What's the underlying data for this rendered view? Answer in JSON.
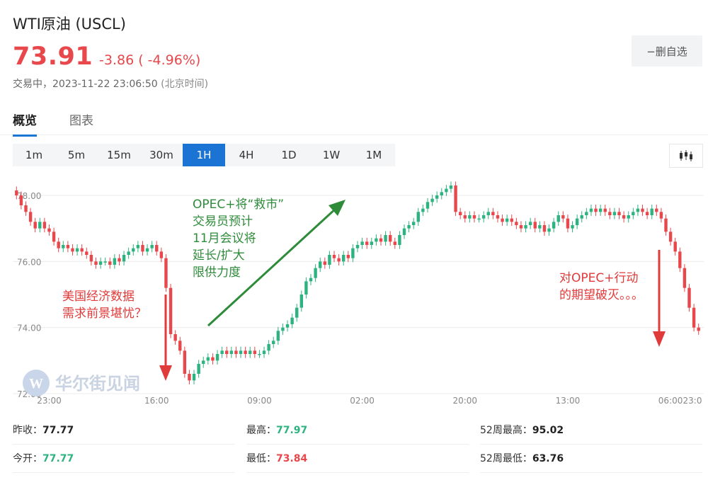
{
  "header": {
    "title": "WTI原油 (USCL)",
    "price": "73.91",
    "change": "-3.86 ( -4.96%)",
    "status_label": "交易中，",
    "timestamp": "2023-11-22 23:06:50",
    "timezone": "(北京时间)",
    "watch_button": "−删自选"
  },
  "tabs": [
    {
      "label": "概览",
      "active": true
    },
    {
      "label": "图表",
      "active": false
    }
  ],
  "ranges": [
    {
      "label": "1m",
      "active": false
    },
    {
      "label": "5m",
      "active": false
    },
    {
      "label": "15m",
      "active": false
    },
    {
      "label": "30m",
      "active": false
    },
    {
      "label": "1H",
      "active": true
    },
    {
      "label": "4H",
      "active": false
    },
    {
      "label": "1D",
      "active": false
    },
    {
      "label": "1W",
      "active": false
    },
    {
      "label": "1M",
      "active": false
    }
  ],
  "chart_type_icon": "candlestick-icon",
  "colors": {
    "up": "#2db37f",
    "down": "#e8474b",
    "accent": "#1b73d4",
    "arrow_up": "#2e8b3a",
    "arrow_down": "#e03a3a"
  },
  "chart_data": {
    "type": "candlestick",
    "title": "",
    "ylim": [
      72.0,
      78.6
    ],
    "y_ticks": [
      "78.00",
      "76.00",
      "74.00",
      "72.00"
    ],
    "y_tick_values": [
      78,
      76,
      74,
      72
    ],
    "x_ticks": [
      "23:00",
      "16:00",
      "09:00",
      "02:00",
      "20:00",
      "13:00",
      "06:00",
      "23:0"
    ],
    "x_tick_positions": [
      7,
      30,
      52,
      74,
      96,
      118,
      140,
      163
    ],
    "grid": true,
    "closes": [
      78.0,
      77.7,
      77.5,
      77.2,
      77.0,
      77.2,
      77.0,
      76.9,
      76.6,
      76.4,
      76.5,
      76.4,
      76.3,
      76.4,
      76.3,
      76.2,
      76.0,
      75.9,
      76.0,
      76.0,
      75.9,
      76.1,
      76.0,
      76.2,
      76.3,
      76.4,
      76.5,
      76.3,
      76.4,
      76.5,
      76.3,
      76.1,
      75.2,
      73.8,
      73.6,
      73.3,
      72.6,
      72.4,
      72.6,
      72.9,
      73.0,
      73.1,
      73.0,
      73.2,
      73.3,
      73.2,
      73.3,
      73.2,
      73.3,
      73.2,
      73.3,
      73.2,
      73.2,
      73.3,
      73.5,
      73.6,
      73.9,
      74.0,
      74.1,
      74.3,
      74.6,
      75.0,
      75.4,
      75.5,
      75.8,
      76.0,
      75.9,
      76.2,
      76.1,
      76.0,
      76.2,
      76.1,
      76.4,
      76.5,
      76.6,
      76.5,
      76.6,
      76.7,
      76.6,
      76.8,
      76.6,
      76.5,
      76.8,
      77.0,
      77.1,
      77.2,
      77.5,
      77.6,
      77.8,
      77.9,
      78.0,
      78.1,
      78.2,
      78.3,
      77.5,
      77.4,
      77.3,
      77.4,
      77.3,
      77.3,
      77.4,
      77.5,
      77.4,
      77.3,
      77.2,
      77.3,
      77.2,
      77.1,
      77.0,
      77.1,
      77.2,
      77.0,
      77.1,
      76.9,
      77.0,
      77.2,
      77.4,
      77.3,
      77.0,
      77.1,
      77.3,
      77.4,
      77.5,
      77.6,
      77.5,
      77.6,
      77.5,
      77.4,
      77.5,
      77.4,
      77.3,
      77.4,
      77.5,
      77.6,
      77.5,
      77.4,
      77.6,
      77.5,
      77.3,
      76.9,
      76.6,
      76.3,
      75.8,
      75.2,
      74.6,
      74.0,
      73.9
    ],
    "annotations": [
      {
        "text_lines": [
          "美国经济数据",
          "需求前景堪忧？"
        ],
        "color": "#e03a3a"
      },
      {
        "text_lines": [
          "OPEC+将“救市”",
          "交易员预计",
          "11月会议将",
          "延长/扩大",
          "限供力度"
        ],
        "color": "#2e8b3a"
      },
      {
        "text_lines": [
          "对OPEC+行动",
          "的期望破灭。。。"
        ],
        "color": "#e03a3a"
      }
    ],
    "watermark": "华尔街见闻"
  },
  "stats": [
    [
      {
        "label": "昨收：",
        "value": "77.77",
        "tone": "neutral"
      },
      {
        "label": "最高：",
        "value": "77.97",
        "tone": "up"
      },
      {
        "label": "52周最高：",
        "value": "95.02",
        "tone": "neutral"
      }
    ],
    [
      {
        "label": "今开：",
        "value": "77.77",
        "tone": "up"
      },
      {
        "label": "最低：",
        "value": "73.84",
        "tone": "down"
      },
      {
        "label": "52周最低：",
        "value": "63.76",
        "tone": "neutral"
      }
    ]
  ]
}
